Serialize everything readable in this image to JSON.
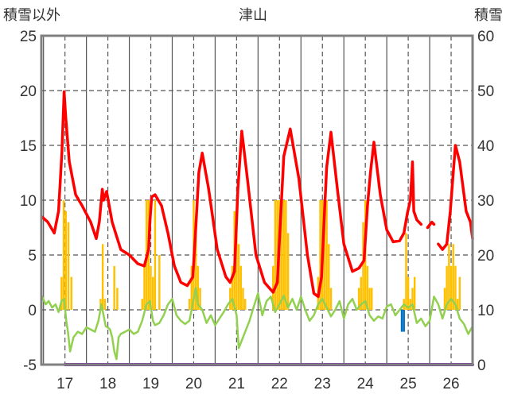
{
  "chart_data": {
    "type": "bar+line",
    "title": "津山",
    "ylabel_left": "積雪以外",
    "ylabel_right": "積雪",
    "ylim_left": [
      -5,
      25
    ],
    "ylim_right": [
      0,
      60
    ],
    "yticks_left": [
      "25",
      "20",
      "15",
      "10",
      "5",
      "0",
      "-5"
    ],
    "yticks_right": [
      "60",
      "50",
      "40",
      "30",
      "20",
      "10",
      "0"
    ],
    "xlim": [
      16.45,
      26.5
    ],
    "x_day_ticks": [
      "17",
      "18",
      "19",
      "20",
      "21",
      "22",
      "23",
      "24",
      "25",
      "26"
    ],
    "grid": "dashed",
    "colors": {
      "background": "#ffffff",
      "plot_border": "#808080",
      "grid": "#555555",
      "temperature": "#ff0000",
      "precipitation": "#ffc000",
      "sunshine_or_wind": "#92d050",
      "snow_depth": "#7030a0",
      "snowfall": "#0070c0"
    },
    "series": [
      {
        "role": "temperature",
        "type": "line",
        "axis": "left",
        "x": [
          16.46,
          16.6,
          16.75,
          16.85,
          16.93,
          16.98,
          17.02,
          17.1,
          17.25,
          17.4,
          17.6,
          17.73,
          17.8,
          17.87,
          17.9,
          17.97,
          18.1,
          18.3,
          18.5,
          18.7,
          18.85,
          18.95,
          18.98,
          19.02,
          19.1,
          19.25,
          19.4,
          19.55,
          19.7,
          19.85,
          19.98,
          20.05,
          20.12,
          20.2,
          20.35,
          20.55,
          20.75,
          20.85,
          20.95,
          21.03,
          21.12,
          21.25,
          21.45,
          21.65,
          21.85,
          21.95,
          22.02,
          22.1,
          22.25,
          22.45,
          22.65,
          22.8,
          22.9,
          22.98,
          23.05,
          23.1,
          23.2,
          23.35,
          23.5,
          23.7,
          23.85,
          23.97,
          24.05,
          24.12,
          24.2,
          24.35,
          24.5,
          24.65,
          24.8,
          24.9,
          24.98,
          25.05,
          25.1,
          25.13,
          25.2,
          25.3,
          25.35,
          25.45,
          25.55,
          25.6,
          25.62,
          25.7,
          25.8,
          25.9,
          25.98,
          26.05,
          26.1,
          26.2,
          26.35,
          26.45,
          26.5
        ],
        "values": [
          8.5,
          8,
          7,
          9,
          14.5,
          19.9,
          17.5,
          13.5,
          10.5,
          9.5,
          8,
          6.5,
          8,
          11,
          10,
          10.8,
          8,
          5.5,
          5,
          4.2,
          4,
          5.5,
          8,
          10.3,
          10.5,
          9.5,
          7,
          4,
          2.5,
          2.2,
          3,
          7.5,
          12.5,
          14.3,
          11,
          5.5,
          3,
          2.5,
          3.5,
          11,
          16.3,
          12,
          5,
          2.5,
          1.6,
          2.5,
          8,
          14,
          16.5,
          12,
          5,
          1.5,
          1.2,
          3,
          9,
          13,
          16.2,
          11,
          6,
          3.5,
          3.8,
          4.5,
          9.5,
          12.5,
          15.3,
          10.5,
          7.3,
          6.2,
          6.3,
          7,
          8.8,
          10,
          13.5,
          9,
          8.2,
          7.8,
          null,
          7.5,
          8,
          7.8,
          null,
          6,
          5.5,
          6,
          9,
          12.5,
          15,
          13.5,
          9,
          8,
          6.5
        ]
      },
      {
        "role": "precipitation",
        "type": "bar",
        "axis": "left",
        "x": [
          16.92,
          16.97,
          17.02,
          17.08,
          17.15,
          17.83,
          17.88,
          17.93,
          18.15,
          18.22,
          18.8,
          18.85,
          18.9,
          18.95,
          19.0,
          19.05,
          19.1,
          19.2,
          19.9,
          19.95,
          20.0,
          20.05,
          20.1,
          20.15,
          20.85,
          20.9,
          20.95,
          21.0,
          21.05,
          21.1,
          21.15,
          21.2,
          21.85,
          21.9,
          21.95,
          22.0,
          22.05,
          22.1,
          22.15,
          22.2,
          22.9,
          22.95,
          23.0,
          23.05,
          23.1,
          23.15,
          23.2,
          23.85,
          23.9,
          23.95,
          24.0,
          24.05,
          24.1,
          24.15,
          24.9,
          24.95,
          25.0,
          25.05,
          25.1,
          25.15,
          25.85,
          25.9,
          25.95,
          26.0,
          26.05,
          26.1,
          26.15,
          26.2
        ],
        "values": [
          3,
          10,
          9,
          8,
          3,
          1,
          6,
          1,
          4,
          2,
          1,
          4,
          10,
          10,
          4,
          3,
          10,
          5,
          1,
          4,
          10,
          7,
          4,
          2,
          2,
          4,
          9,
          8,
          6,
          4,
          2,
          1,
          4,
          10,
          10,
          10,
          10,
          10,
          10,
          7,
          3,
          10,
          10,
          10,
          10,
          6,
          2,
          2,
          3,
          8,
          10,
          4,
          2,
          2,
          1,
          7,
          3,
          1,
          2,
          3,
          2,
          4,
          6,
          4,
          6,
          4,
          1,
          3
        ]
      },
      {
        "role": "sunshine_or_wind",
        "type": "line",
        "axis": "left",
        "x": [
          16.46,
          16.55,
          16.62,
          16.7,
          16.78,
          16.85,
          16.92,
          16.98,
          17.03,
          17.07,
          17.12,
          17.2,
          17.3,
          17.4,
          17.5,
          17.6,
          17.7,
          17.78,
          17.85,
          17.9,
          17.95,
          18.0,
          18.05,
          18.1,
          18.15,
          18.2,
          18.25,
          18.3,
          18.4,
          18.5,
          18.6,
          18.7,
          18.8,
          18.9,
          18.98,
          19.05,
          19.1,
          19.2,
          19.3,
          19.4,
          19.5,
          19.6,
          19.7,
          19.8,
          19.9,
          20.0,
          20.05,
          20.1,
          20.2,
          20.3,
          20.4,
          20.5,
          20.6,
          20.7,
          20.8,
          20.9,
          21.0,
          21.05,
          21.1,
          21.2,
          21.3,
          21.4,
          21.5,
          21.6,
          21.7,
          21.8,
          21.9,
          22.0,
          22.1,
          22.2,
          22.3,
          22.4,
          22.5,
          22.6,
          22.7,
          22.8,
          22.9,
          23.0,
          23.1,
          23.2,
          23.3,
          23.4,
          23.5,
          23.6,
          23.7,
          23.8,
          23.9,
          24.0,
          24.1,
          24.2,
          24.3,
          24.4,
          24.5,
          24.6,
          24.7,
          24.8,
          24.9,
          25.0,
          25.1,
          25.2,
          25.3,
          25.4,
          25.5,
          25.6,
          25.7,
          25.8,
          25.9,
          26.0,
          26.1,
          26.2,
          26.3,
          26.4,
          26.5
        ],
        "values": [
          1.3,
          0.5,
          0.8,
          0.2,
          0.5,
          -0.2,
          0.8,
          1.0,
          -1.0,
          -2.0,
          -3.8,
          -2.5,
          -2.0,
          -2.2,
          -1.6,
          -1.8,
          -2.0,
          -1.0,
          0.5,
          -0.5,
          -1.5,
          -1.6,
          -1.8,
          -2.5,
          -3.8,
          -4.5,
          -2.5,
          -2.2,
          -2.0,
          -1.8,
          -2.2,
          -2.0,
          -1.0,
          0.5,
          0.8,
          -1.0,
          -1.4,
          -1.2,
          -0.5,
          0.5,
          1.0,
          -0.5,
          -1.0,
          -1.3,
          -1.0,
          1.0,
          2.0,
          0.5,
          0.0,
          -1.2,
          -0.5,
          -1.4,
          -0.8,
          -0.2,
          0.5,
          1.0,
          -0.5,
          -3.5,
          -3.0,
          -2.0,
          -1.0,
          0.3,
          1.5,
          -0.5,
          0.8,
          1.2,
          -0.2,
          0.5,
          1.3,
          0.2,
          1.0,
          0.0,
          1.2,
          0.0,
          -1.0,
          -0.5,
          0.5,
          1.0,
          0.2,
          -0.6,
          0.0,
          0.8,
          -0.8,
          0.5,
          1.0,
          0.0,
          0.5,
          0.8,
          -0.5,
          -1.0,
          -0.6,
          -0.8,
          0.3,
          0.5,
          -0.5,
          0.0,
          0.5,
          0.2,
          0.5,
          -1.2,
          -0.8,
          -1.5,
          -1.0,
          1.2,
          0.5,
          -0.8,
          0.5,
          1.0,
          0.5,
          -0.8,
          -1.3,
          -2.2,
          -1.5
        ]
      },
      {
        "role": "snow_depth",
        "type": "line",
        "axis": "right",
        "x": [
          17.0,
          26.5
        ],
        "values": [
          0,
          0
        ]
      },
      {
        "role": "snowfall",
        "type": "bar",
        "axis": "left",
        "x": [
          24.85,
          24.9
        ],
        "values": [
          -2,
          -2
        ]
      }
    ]
  }
}
